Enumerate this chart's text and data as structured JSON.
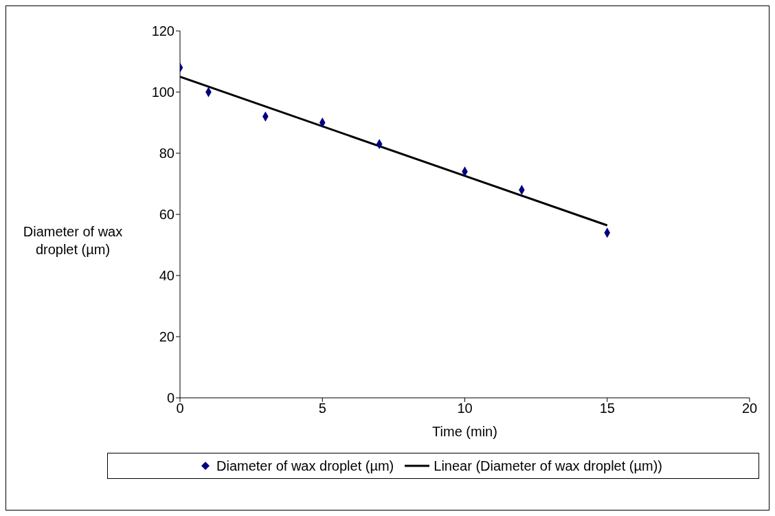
{
  "chart_data": {
    "type": "scatter",
    "xlabel": "Time (min)",
    "ylabel": "Diameter of wax droplet (µm)",
    "x": [
      0,
      1,
      3,
      5,
      7,
      10,
      12,
      15
    ],
    "series": [
      {
        "name": "Diameter of wax droplet (µm)",
        "color": "#000080",
        "values": [
          108,
          100,
          92,
          90,
          83,
          74,
          68,
          54
        ],
        "marker": "diamond"
      },
      {
        "type": "line",
        "name": "Linear (Diameter of wax droplet (µm))",
        "color": "#000000",
        "x": [
          0,
          15
        ],
        "values": [
          105,
          56.4
        ],
        "marker": "none",
        "line_style": "solid"
      }
    ],
    "xlim": [
      0,
      20
    ],
    "xticks": [
      0,
      5,
      10,
      15,
      20
    ],
    "ylim": [
      0,
      120
    ],
    "yticks": [
      0,
      20,
      40,
      60,
      80,
      100,
      120
    ],
    "legend": "bottom"
  }
}
